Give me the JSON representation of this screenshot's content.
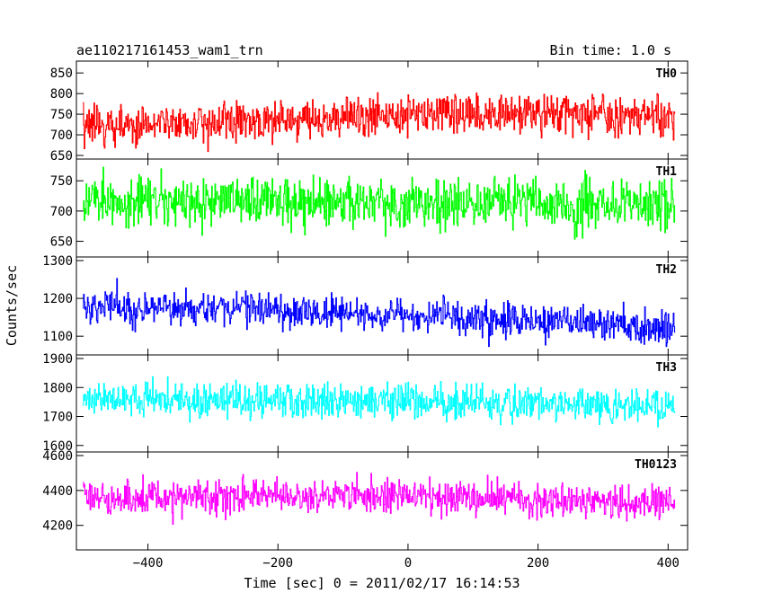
{
  "header": {
    "title": "ae110217161453_wam1_trn",
    "bin_time": "Bin time: 1.0 s"
  },
  "chart_data": {
    "type": "line",
    "title": "ae110217161453_wam1_trn",
    "subtitle": "Bin time: 1.0 s",
    "xlabel": "Time [sec] 0 = 2011/02/17 16:14:53",
    "ylabel": "Counts/sec",
    "xlim": [
      -510,
      430
    ],
    "x_ticks": [
      -400,
      -200,
      0,
      200,
      400
    ],
    "x_tick_labels": [
      "−400",
      "−200",
      "0",
      "200",
      "400"
    ],
    "x_range_data": [
      -500,
      410
    ],
    "bin_time_s": 1.0,
    "grid": false,
    "panels": [
      {
        "name": "TH0",
        "color": "#ff0000",
        "ylim": [
          650,
          870
        ],
        "y_ticks": [
          650,
          700,
          750,
          800,
          850
        ],
        "y_tick_labels": [
          "650",
          "700",
          "750",
          "800",
          "850"
        ],
        "series_segments": [
          {
            "x": [
              -500,
              -200,
              0,
              200,
              410
            ],
            "mean": [
              725,
              735,
              750,
              752,
              740
            ],
            "amp": 45
          }
        ]
      },
      {
        "name": "TH1",
        "color": "#00ff00",
        "ylim": [
          630,
          780
        ],
        "y_ticks": [
          650,
          700,
          750
        ],
        "y_tick_labels": [
          "650",
          "700",
          "750"
        ],
        "series_segments": [
          {
            "x": [
              -500,
              0,
              410
            ],
            "mean": [
              718,
              715,
              712
            ],
            "amp": 38
          }
        ]
      },
      {
        "name": "TH2",
        "color": "#0000ff",
        "ylim": [
          1060,
          1300
        ],
        "y_ticks": [
          1100,
          1200,
          1300
        ],
        "y_tick_labels": [
          "1100",
          "1200",
          "1300"
        ],
        "series_segments": [
          {
            "x": [
              -500,
              -200,
              0,
              200,
              410
            ],
            "mean": [
              1180,
              1168,
              1155,
              1140,
              1120
            ],
            "amp": 42
          }
        ]
      },
      {
        "name": "TH3",
        "color": "#00ffff",
        "ylim": [
          1590,
          1900
        ],
        "y_ticks": [
          1600,
          1700,
          1800,
          1900
        ],
        "y_tick_labels": [
          "1600",
          "1700",
          "1800",
          "1900"
        ],
        "series_segments": [
          {
            "x": [
              -500,
              0,
              410
            ],
            "mean": [
              1760,
              1755,
              1730
            ],
            "amp": 55
          }
        ]
      },
      {
        "name": "TH0123",
        "color": "#ff00ff",
        "ylim": [
          4080,
          4600
        ],
        "y_ticks": [
          4200,
          4400,
          4600
        ],
        "y_tick_labels": [
          "4200",
          "4400",
          "4600"
        ],
        "series_segments": [
          {
            "x": [
              -500,
              0,
              410
            ],
            "mean": [
              4360,
              4370,
              4320
            ],
            "amp": 90
          }
        ]
      }
    ]
  }
}
